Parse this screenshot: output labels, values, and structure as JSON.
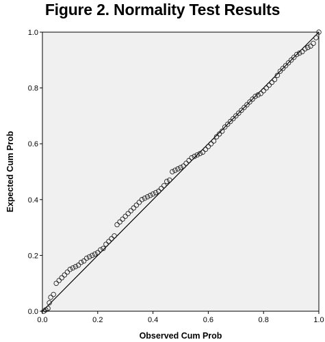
{
  "chart_data": {
    "type": "scatter",
    "title": "Figure 2. Normality Test Results",
    "xlabel": "Observed Cum Prob",
    "ylabel": "Expected Cum Prob",
    "xlim": [
      0,
      1
    ],
    "ylim": [
      0,
      1
    ],
    "x_ticks": [
      "0.0",
      "0.2",
      "0.4",
      "0.6",
      "0.8",
      "1.0"
    ],
    "y_ticks": [
      "0.0",
      "0.2",
      "0.4",
      "0.6",
      "0.8",
      "1.0"
    ],
    "grid": false,
    "reference_line": {
      "from": [
        0,
        0
      ],
      "to": [
        1,
        1
      ]
    },
    "series": [
      {
        "points": [
          [
            0.005,
            0.0
          ],
          [
            0.012,
            0.005
          ],
          [
            0.02,
            0.01
          ],
          [
            0.025,
            0.03
          ],
          [
            0.03,
            0.05
          ],
          [
            0.04,
            0.06
          ],
          [
            0.05,
            0.1
          ],
          [
            0.06,
            0.11
          ],
          [
            0.07,
            0.12
          ],
          [
            0.08,
            0.13
          ],
          [
            0.09,
            0.14
          ],
          [
            0.1,
            0.15
          ],
          [
            0.11,
            0.155
          ],
          [
            0.12,
            0.16
          ],
          [
            0.13,
            0.165
          ],
          [
            0.14,
            0.175
          ],
          [
            0.15,
            0.18
          ],
          [
            0.16,
            0.19
          ],
          [
            0.17,
            0.195
          ],
          [
            0.18,
            0.2
          ],
          [
            0.19,
            0.205
          ],
          [
            0.2,
            0.21
          ],
          [
            0.21,
            0.22
          ],
          [
            0.22,
            0.225
          ],
          [
            0.23,
            0.24
          ],
          [
            0.24,
            0.25
          ],
          [
            0.25,
            0.26
          ],
          [
            0.26,
            0.27
          ],
          [
            0.27,
            0.31
          ],
          [
            0.28,
            0.32
          ],
          [
            0.29,
            0.33
          ],
          [
            0.3,
            0.34
          ],
          [
            0.31,
            0.35
          ],
          [
            0.32,
            0.36
          ],
          [
            0.33,
            0.37
          ],
          [
            0.34,
            0.38
          ],
          [
            0.35,
            0.39
          ],
          [
            0.36,
            0.4
          ],
          [
            0.37,
            0.405
          ],
          [
            0.38,
            0.41
          ],
          [
            0.39,
            0.415
          ],
          [
            0.4,
            0.42
          ],
          [
            0.41,
            0.425
          ],
          [
            0.42,
            0.43
          ],
          [
            0.43,
            0.44
          ],
          [
            0.44,
            0.45
          ],
          [
            0.45,
            0.465
          ],
          [
            0.46,
            0.47
          ],
          [
            0.47,
            0.5
          ],
          [
            0.48,
            0.505
          ],
          [
            0.49,
            0.51
          ],
          [
            0.5,
            0.515
          ],
          [
            0.51,
            0.52
          ],
          [
            0.52,
            0.53
          ],
          [
            0.53,
            0.54
          ],
          [
            0.54,
            0.55
          ],
          [
            0.55,
            0.555
          ],
          [
            0.56,
            0.56
          ],
          [
            0.57,
            0.565
          ],
          [
            0.58,
            0.57
          ],
          [
            0.59,
            0.58
          ],
          [
            0.6,
            0.59
          ],
          [
            0.61,
            0.6
          ],
          [
            0.62,
            0.61
          ],
          [
            0.63,
            0.625
          ],
          [
            0.64,
            0.635
          ],
          [
            0.65,
            0.645
          ],
          [
            0.66,
            0.66
          ],
          [
            0.67,
            0.67
          ],
          [
            0.68,
            0.68
          ],
          [
            0.69,
            0.69
          ],
          [
            0.7,
            0.7
          ],
          [
            0.71,
            0.71
          ],
          [
            0.72,
            0.72
          ],
          [
            0.73,
            0.73
          ],
          [
            0.74,
            0.74
          ],
          [
            0.75,
            0.75
          ],
          [
            0.76,
            0.76
          ],
          [
            0.77,
            0.77
          ],
          [
            0.78,
            0.775
          ],
          [
            0.79,
            0.78
          ],
          [
            0.8,
            0.79
          ],
          [
            0.81,
            0.8
          ],
          [
            0.82,
            0.81
          ],
          [
            0.83,
            0.82
          ],
          [
            0.84,
            0.83
          ],
          [
            0.85,
            0.845
          ],
          [
            0.86,
            0.86
          ],
          [
            0.87,
            0.87
          ],
          [
            0.88,
            0.88
          ],
          [
            0.89,
            0.89
          ],
          [
            0.9,
            0.9
          ],
          [
            0.91,
            0.91
          ],
          [
            0.92,
            0.92
          ],
          [
            0.93,
            0.925
          ],
          [
            0.94,
            0.93
          ],
          [
            0.95,
            0.94
          ],
          [
            0.96,
            0.945
          ],
          [
            0.97,
            0.95
          ],
          [
            0.98,
            0.96
          ],
          [
            0.99,
            0.98
          ],
          [
            1.0,
            1.0
          ]
        ]
      }
    ]
  }
}
